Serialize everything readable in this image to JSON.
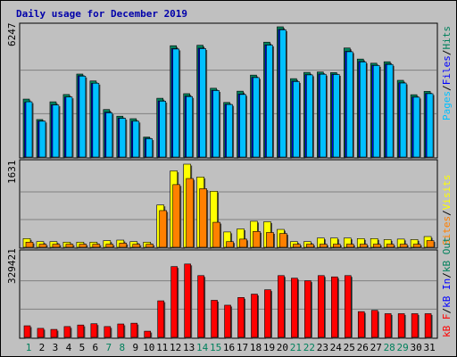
{
  "title": "Daily usage for December 2019",
  "colors": {
    "background": "#c0c0c0",
    "hits": "#00805c",
    "files": "#0000ff",
    "pages": "#00c0ff",
    "visits": "#ffff00",
    "sites": "#ff8000",
    "kb_f": "#ff0000",
    "kb_in": "#0000ff",
    "kb_out": "#00805c",
    "title": "#0000aa",
    "weekday_label": "#000000",
    "weekend_label": "#00805c"
  },
  "legends": {
    "top": [
      {
        "text": "Pages",
        "color": "#00c0ff"
      },
      {
        "text": "/",
        "color": "#000000"
      },
      {
        "text": "Files",
        "color": "#0000ff"
      },
      {
        "text": "/",
        "color": "#000000"
      },
      {
        "text": "Hits",
        "color": "#00805c"
      }
    ],
    "middle": [
      {
        "text": "Sites",
        "color": "#ff8000"
      },
      {
        "text": "/",
        "color": "#000000"
      },
      {
        "text": "Visits",
        "color": "#ffff00"
      }
    ],
    "bottom": [
      {
        "text": "kB F",
        "color": "#ff0000"
      },
      {
        "text": "/",
        "color": "#000000"
      },
      {
        "text": "kB In",
        "color": "#0000ff"
      },
      {
        "text": "/",
        "color": "#000000"
      },
      {
        "text": "kB Out",
        "color": "#00805c"
      }
    ]
  },
  "chart_data": [
    {
      "type": "bar",
      "panel": "hits-files-pages",
      "ymax_label": "6247",
      "ylim": [
        0,
        6247
      ],
      "categories": [
        "1",
        "2",
        "3",
        "4",
        "5",
        "6",
        "7",
        "8",
        "9",
        "10",
        "11",
        "12",
        "13",
        "14",
        "15",
        "16",
        "17",
        "18",
        "19",
        "20",
        "21",
        "22",
        "23",
        "24",
        "25",
        "26",
        "27",
        "28",
        "29",
        "30",
        "31"
      ],
      "weekend_days": [
        "1",
        "7",
        "8",
        "14",
        "15",
        "21",
        "22",
        "28",
        "29"
      ],
      "series": [
        {
          "name": "Hits",
          "values": [
            2780,
            1800,
            2650,
            3000,
            3980,
            3650,
            2280,
            1960,
            1840,
            960,
            2820,
            5340,
            3040,
            5360,
            3300,
            2620,
            3160,
            3930,
            5510,
            6247,
            3760,
            4060,
            4080,
            4050,
            5230,
            4700,
            4500,
            4570,
            3680,
            2990,
            3150
          ]
        },
        {
          "name": "Files",
          "values": [
            2620,
            1730,
            2510,
            2880,
            3900,
            3530,
            2150,
            1870,
            1720,
            900,
            2690,
            5200,
            2920,
            5220,
            3200,
            2530,
            3020,
            3820,
            5380,
            6120,
            3640,
            3950,
            3980,
            3970,
            5070,
            4580,
            4400,
            4460,
            3560,
            2880,
            3050
          ]
        },
        {
          "name": "Pages",
          "values": [
            2650,
            1720,
            2500,
            2880,
            3880,
            3540,
            2120,
            1860,
            1720,
            880,
            2680,
            5180,
            2900,
            5200,
            3190,
            2520,
            3000,
            3810,
            5370,
            6100,
            3620,
            3940,
            3970,
            3960,
            5050,
            4560,
            4390,
            4440,
            3550,
            2870,
            3040
          ]
        }
      ]
    },
    {
      "type": "bar",
      "panel": "visits-sites",
      "ymax_label": "1631",
      "ylim": [
        0,
        1631
      ],
      "categories": [
        "1",
        "2",
        "3",
        "4",
        "5",
        "6",
        "7",
        "8",
        "9",
        "10",
        "11",
        "12",
        "13",
        "14",
        "15",
        "16",
        "17",
        "18",
        "19",
        "20",
        "21",
        "22",
        "23",
        "24",
        "25",
        "26",
        "27",
        "28",
        "29",
        "30",
        "31"
      ],
      "series": [
        {
          "name": "Visits",
          "values": [
            170,
            110,
            110,
            100,
            100,
            100,
            130,
            140,
            110,
            100,
            830,
            1500,
            1631,
            1380,
            1100,
            300,
            360,
            510,
            500,
            350,
            110,
            110,
            180,
            180,
            180,
            170,
            170,
            150,
            160,
            150,
            210
          ]
        },
        {
          "name": "Sites",
          "values": [
            100,
            60,
            60,
            60,
            60,
            60,
            60,
            80,
            60,
            60,
            720,
            1230,
            1350,
            1150,
            490,
            110,
            160,
            310,
            290,
            270,
            60,
            60,
            60,
            60,
            60,
            60,
            60,
            60,
            60,
            60,
            130
          ]
        }
      ]
    },
    {
      "type": "bar",
      "panel": "kbytes",
      "ymax_label": "329421",
      "ylim": [
        0,
        329421
      ],
      "categories": [
        "1",
        "2",
        "3",
        "4",
        "5",
        "6",
        "7",
        "8",
        "9",
        "10",
        "11",
        "12",
        "13",
        "14",
        "15",
        "16",
        "17",
        "18",
        "19",
        "20",
        "21",
        "22",
        "23",
        "24",
        "25",
        "26",
        "27",
        "28",
        "29",
        "30",
        "31"
      ],
      "series": [
        {
          "name": "kB F",
          "values": [
            45000,
            35000,
            31000,
            42000,
            48000,
            53000,
            42000,
            52000,
            55000,
            24000,
            142000,
            275000,
            285000,
            240000,
            144000,
            125000,
            155000,
            168000,
            185000,
            240000,
            230000,
            220000,
            240000,
            235000,
            240000,
            100000,
            105000,
            92000,
            92000,
            92000,
            92000
          ]
        }
      ]
    }
  ]
}
